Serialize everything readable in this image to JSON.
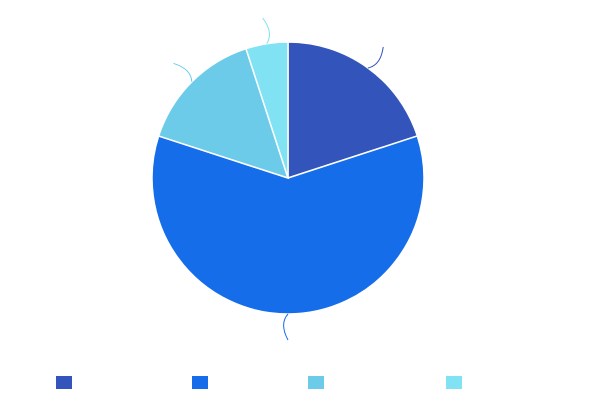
{
  "chart_data": {
    "type": "pie",
    "title": "",
    "categories": [
      "",
      "",
      "",
      ""
    ],
    "values": [
      20,
      60,
      15,
      5
    ],
    "colors": [
      "#3355bb",
      "#156de9",
      "#6bcbe9",
      "#80e2f2"
    ],
    "legend_position": "bottom",
    "data_labels_visible": false
  }
}
